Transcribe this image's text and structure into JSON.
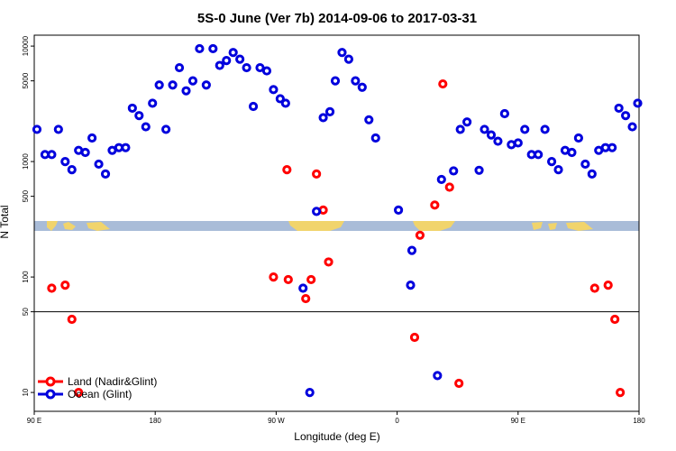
{
  "chart_data": {
    "type": "scatter",
    "title": "5S-0 June (Ver 7b)   2014-09-06 to 2017-03-31",
    "xlabel": "Longitude (deg E)",
    "ylabel": "N Total",
    "y_scale": "log",
    "x_ticks": [
      {
        "value": -90,
        "label": "90 E"
      },
      {
        "value": 0,
        "label": "180"
      },
      {
        "value": 90,
        "label": "90 W"
      },
      {
        "value": 180,
        "label": "0"
      },
      {
        "value": 270,
        "label": "90 E"
      },
      {
        "value": 360,
        "label": "180"
      }
    ],
    "y_ticks": [
      10,
      50,
      100,
      500,
      1000,
      5000,
      10000
    ],
    "xlim": [
      -90,
      360
    ],
    "reference_line_y": 50,
    "legend_position": "bottom-left",
    "series": [
      {
        "name": "Land (Nadir&Glint)",
        "color": "#ff0000",
        "points": [
          [
            -77,
            80
          ],
          [
            -67,
            85
          ],
          [
            -62,
            43
          ],
          [
            -57,
            10
          ],
          [
            88,
            100
          ],
          [
            99,
            95
          ],
          [
            98,
            850
          ],
          [
            112,
            65
          ],
          [
            116,
            95
          ],
          [
            120,
            780
          ],
          [
            125,
            380
          ],
          [
            129,
            135
          ],
          [
            193,
            30
          ],
          [
            197,
            230
          ],
          [
            208,
            420
          ],
          [
            219,
            600
          ],
          [
            226,
            12
          ],
          [
            214,
            4700
          ],
          [
            327,
            80
          ],
          [
            337,
            85
          ],
          [
            342,
            43
          ],
          [
            346,
            10
          ]
        ]
      },
      {
        "name": "Ocean (Glint)",
        "color": "#0000dd",
        "points": [
          [
            -88,
            1900
          ],
          [
            -82,
            1150
          ],
          [
            -77,
            1150
          ],
          [
            -72,
            1900
          ],
          [
            -67,
            1000
          ],
          [
            -62,
            850
          ],
          [
            -57,
            1250
          ],
          [
            -52,
            1200
          ],
          [
            -47,
            1600
          ],
          [
            -42,
            950
          ],
          [
            -37,
            780
          ],
          [
            -32,
            1250
          ],
          [
            -27,
            1320
          ],
          [
            -22,
            1320
          ],
          [
            -17,
            2900
          ],
          [
            -12,
            2500
          ],
          [
            -7,
            2000
          ],
          [
            -2,
            3200
          ],
          [
            3,
            4600
          ],
          [
            8,
            1900
          ],
          [
            13,
            4600
          ],
          [
            18,
            6500
          ],
          [
            23,
            4100
          ],
          [
            28,
            5000
          ],
          [
            33,
            9500
          ],
          [
            38,
            4600
          ],
          [
            43,
            9500
          ],
          [
            48,
            6800
          ],
          [
            53,
            7500
          ],
          [
            58,
            8800
          ],
          [
            63,
            7700
          ],
          [
            68,
            6500
          ],
          [
            73,
            3000
          ],
          [
            78,
            6500
          ],
          [
            83,
            6100
          ],
          [
            88,
            4200
          ],
          [
            93,
            3500
          ],
          [
            97,
            3200
          ],
          [
            110,
            80
          ],
          [
            115,
            10
          ],
          [
            120,
            370
          ],
          [
            125,
            2400
          ],
          [
            130,
            2700
          ],
          [
            134,
            5000
          ],
          [
            139,
            8800
          ],
          [
            144,
            7700
          ],
          [
            149,
            5000
          ],
          [
            154,
            4400
          ],
          [
            159,
            2300
          ],
          [
            164,
            1600
          ],
          [
            181,
            380
          ],
          [
            190,
            85
          ],
          [
            191,
            170
          ],
          [
            210,
            14
          ],
          [
            213,
            700
          ],
          [
            222,
            830
          ],
          [
            227,
            1900
          ],
          [
            232,
            2200
          ],
          [
            241,
            840
          ],
          [
            245,
            1900
          ],
          [
            250,
            1700
          ],
          [
            255,
            1500
          ],
          [
            260,
            2600
          ],
          [
            265,
            1400
          ],
          [
            270,
            1450
          ],
          [
            275,
            1900
          ],
          [
            280,
            1150
          ],
          [
            285,
            1150
          ],
          [
            290,
            1900
          ],
          [
            295,
            1000
          ],
          [
            300,
            850
          ],
          [
            305,
            1250
          ],
          [
            310,
            1200
          ],
          [
            315,
            1600
          ],
          [
            320,
            950
          ],
          [
            325,
            780
          ],
          [
            330,
            1250
          ],
          [
            335,
            1320
          ],
          [
            340,
            1320
          ],
          [
            345,
            2900
          ],
          [
            350,
            2500
          ],
          [
            355,
            2000
          ],
          [
            359,
            3200
          ]
        ]
      }
    ]
  }
}
